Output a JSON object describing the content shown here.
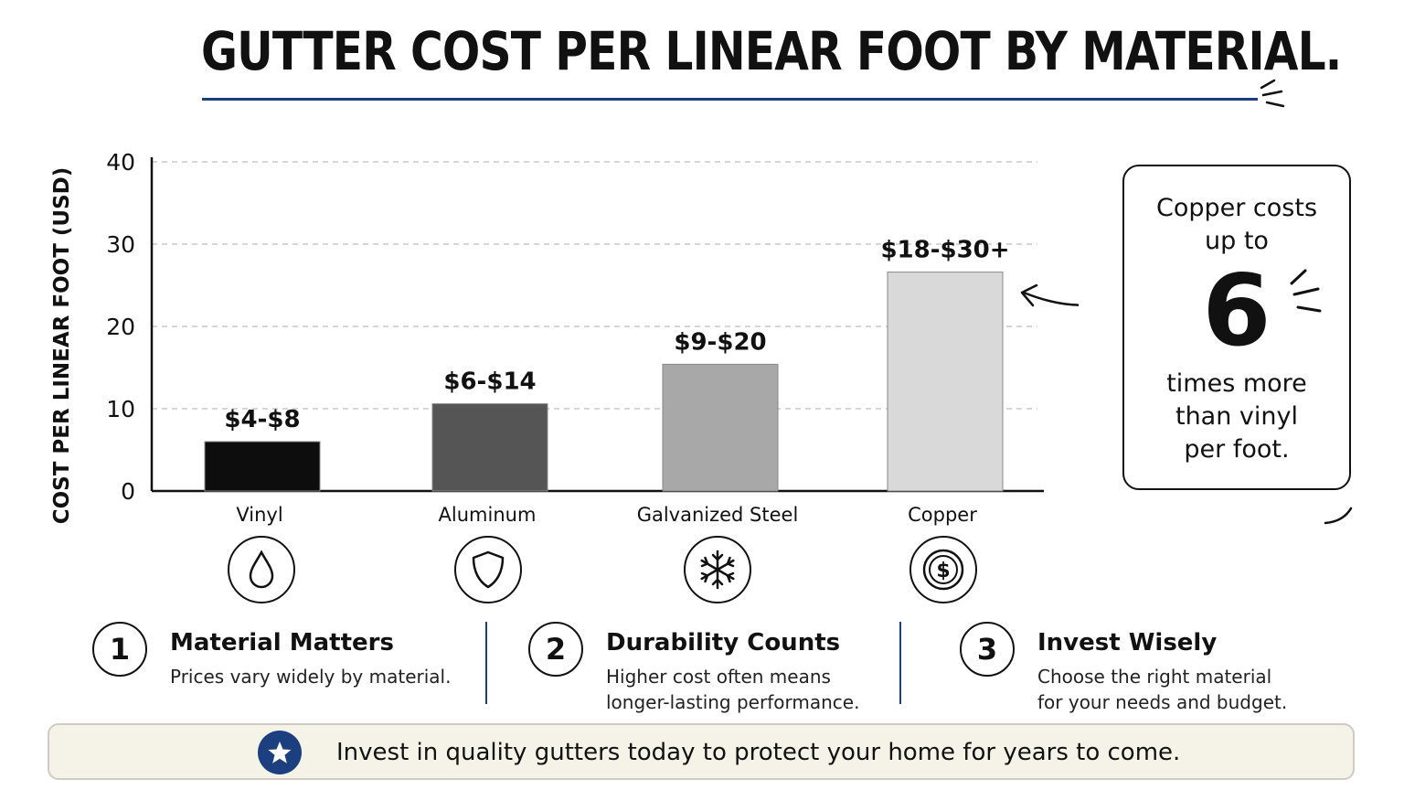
{
  "title": "GUTTER COST PER LINEAR FOOT BY MATERIAL.",
  "colors": {
    "accent": "#1c3f7f",
    "banner_bg": "#f5f2e8"
  },
  "chart_data": {
    "type": "bar",
    "title": "GUTTER COST PER LINEAR FOOT BY MATERIAL.",
    "ylabel": "COST PER LINEAR FOOT (USD)",
    "xlabel": "",
    "ylim": [
      0,
      40
    ],
    "yticks": [
      0,
      10,
      20,
      30,
      40
    ],
    "grid": true,
    "categories": [
      "Vinyl",
      "Aluminum",
      "Galvanized Steel",
      "Copper"
    ],
    "values": [
      6,
      10.6,
      15.4,
      26.6
    ],
    "data_labels": [
      "$4-$8",
      "$6-$14",
      "$9-$20",
      "$18-$30+"
    ],
    "bar_colors": [
      "#0d0d0d",
      "#555555",
      "#a8a8a8",
      "#d9d9d9"
    ],
    "category_icons": [
      "water-drop-icon",
      "shield-icon",
      "snowflake-icon",
      "dollar-coin-icon"
    ]
  },
  "callout": {
    "line1": "Copper costs",
    "line2": "up to",
    "big": "6",
    "line3": "times more",
    "line4": "than vinyl",
    "line5": "per foot."
  },
  "points": [
    {
      "num": "1",
      "heading": "Material Matters",
      "body": "Prices vary widely by material."
    },
    {
      "num": "2",
      "heading": "Durability Counts",
      "body": "Higher cost often means longer-lasting performance."
    },
    {
      "num": "3",
      "heading": "Invest Wisely",
      "body": "Choose the right material for your needs and budget."
    }
  ],
  "banner": {
    "icon": "star-icon",
    "text": "Invest in quality gutters today to protect your home for years to come."
  }
}
